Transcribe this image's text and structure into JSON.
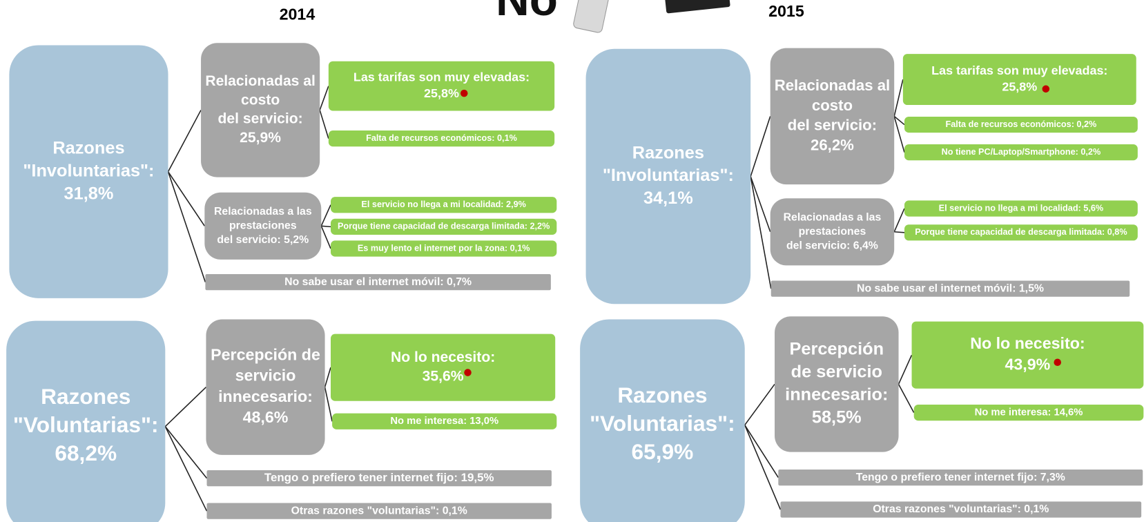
{
  "header": {
    "logo_text": "No"
  },
  "panels": [
    {
      "year": "2014",
      "groups": [
        {
          "lines": [
            "Razones",
            "\"Involuntarias\":",
            "31,8%"
          ],
          "children": [
            {
              "lines": [
                "Relacionadas al",
                "costo",
                "del servicio:",
                "25,9%"
              ],
              "children": [
                {
                  "lines": [
                    "Las tarifas son muy elevadas:",
                    "25,8%"
                  ]
                },
                {
                  "lines": [
                    "Falta de recursos económicos: 0,1%"
                  ]
                }
              ]
            },
            {
              "lines": [
                "Relacionadas a las",
                "prestaciones",
                "del servicio: 5,2%"
              ],
              "children": [
                {
                  "lines": [
                    "El servicio no llega a mi localidad: 2,9%"
                  ]
                },
                {
                  "lines": [
                    "Porque tiene capacidad de descarga limitada: 2,2%"
                  ]
                },
                {
                  "lines": [
                    "Es muy lento el internet por la zona: 0,1%"
                  ]
                }
              ]
            },
            {
              "lines": [
                "No sabe usar el internet móvil:  0,7%"
              ]
            }
          ]
        },
        {
          "lines": [
            "Razones",
            "\"Voluntarias\":",
            "68,2%"
          ],
          "children": [
            {
              "lines": [
                "Percepción de",
                "servicio",
                "innecesario:",
                "48,6%"
              ],
              "children": [
                {
                  "lines": [
                    "No lo necesito:",
                    "35,6%"
                  ]
                },
                {
                  "lines": [
                    "No me interesa: 13,0%"
                  ]
                }
              ]
            },
            {
              "lines": [
                "Tengo o prefiero tener internet fijo:  19,5%"
              ]
            },
            {
              "lines": [
                "Otras razones \"voluntarias\": 0,1%"
              ]
            }
          ]
        }
      ]
    },
    {
      "year": "2015",
      "groups": [
        {
          "lines": [
            "Razones",
            "\"Involuntarias\":",
            "34,1%"
          ],
          "children": [
            {
              "lines": [
                "Relacionadas al",
                "costo",
                "del servicio:",
                "26,2%"
              ],
              "children": [
                {
                  "lines": [
                    "Las tarifas son muy elevadas:",
                    "25,8%"
                  ]
                },
                {
                  "lines": [
                    "Falta de recursos económicos: 0,2%"
                  ]
                },
                {
                  "lines": [
                    "No tiene PC/Laptop/Smartphone: 0,2%"
                  ]
                }
              ]
            },
            {
              "lines": [
                "Relacionadas a las",
                "prestaciones",
                "del servicio: 6,4%"
              ],
              "children": [
                {
                  "lines": [
                    "El servicio no llega a mi localidad: 5,6%"
                  ]
                },
                {
                  "lines": [
                    "Porque tiene capacidad de descarga limitada: 0,8%"
                  ]
                }
              ]
            },
            {
              "lines": [
                "No sabe usar el internet móvil:  1,5%"
              ]
            }
          ]
        },
        {
          "lines": [
            "Razones",
            "\"Voluntarias\":",
            "65,9%"
          ],
          "children": [
            {
              "lines": [
                "Percepción",
                "de servicio",
                "innecesario:",
                "58,5%"
              ],
              "children": [
                {
                  "lines": [
                    "No lo necesito:",
                    "43,9%"
                  ]
                },
                {
                  "lines": [
                    "No me interesa: 14,6%"
                  ]
                }
              ]
            },
            {
              "lines": [
                "Tengo o prefiero tener internet fijo: 7,3%"
              ]
            },
            {
              "lines": [
                "Otras razones \"voluntarias\": 0,1%"
              ]
            }
          ]
        }
      ]
    }
  ]
}
